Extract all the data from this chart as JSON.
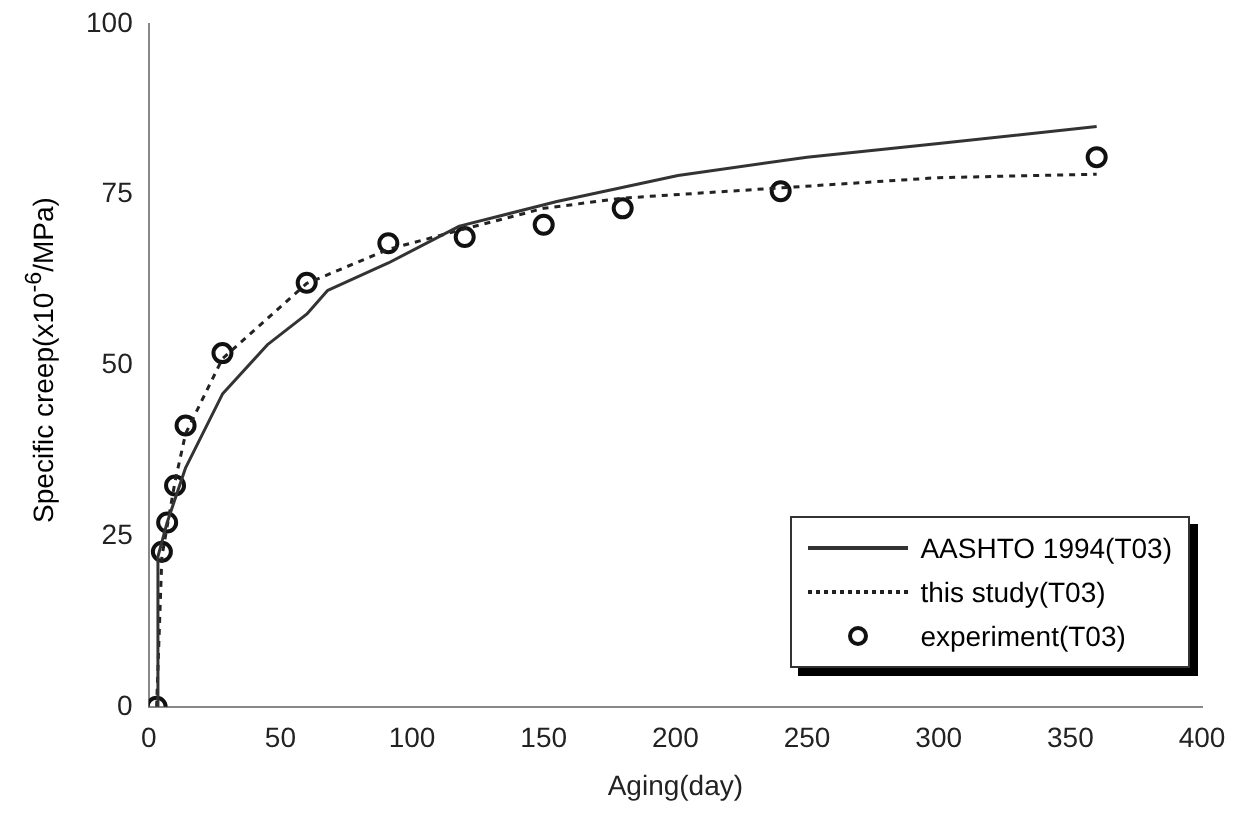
{
  "chart_data": {
    "type": "line",
    "xlabel": "Aging(day)",
    "ylabel": "Specific creep(x10$^{-6}$/MPa)",
    "xlim": [
      0,
      400
    ],
    "xticks": [
      0,
      50,
      100,
      150,
      200,
      250,
      300,
      350,
      400
    ],
    "ylim": [
      0,
      100
    ],
    "yticks": [
      0,
      25,
      50,
      75,
      100
    ],
    "grid": false,
    "legend": "bottom right",
    "series": [
      {
        "name": "AASHTO 1994(T03)",
        "type": "line",
        "color": "#333333",
        "line_style": "solid",
        "marker": "none",
        "x": [
          3,
          3.5,
          7,
          14,
          28,
          45,
          60,
          68,
          91,
          118,
          155,
          201,
          250,
          300,
          360
        ],
        "values": [
          0,
          22,
          27,
          35,
          45.8,
          53,
          57.5,
          61,
          65,
          70.4,
          74,
          77.8,
          80.5,
          82.5,
          85
        ]
      },
      {
        "name": "this study(T03)",
        "type": "line",
        "color": "#222222",
        "line_style": "dotted",
        "marker": "none",
        "x": [
          3,
          5,
          10,
          14,
          28,
          60,
          91,
          120,
          150,
          180,
          240,
          300,
          360
        ],
        "values": [
          0,
          22,
          33,
          40,
          51,
          62,
          67,
          70,
          73,
          74.5,
          76,
          77.5,
          78
        ]
      },
      {
        "name": "experiment(T03)",
        "type": "scatter",
        "color": "#111111",
        "marker": "circle",
        "x": [
          3,
          5,
          7,
          10,
          14,
          28,
          60,
          91,
          120,
          150,
          180,
          240,
          360
        ],
        "values": [
          0,
          22.7,
          27,
          32.4,
          41.2,
          51.8,
          62.1,
          67.9,
          68.8,
          70.6,
          73,
          75.5,
          80.5
        ]
      }
    ]
  }
}
